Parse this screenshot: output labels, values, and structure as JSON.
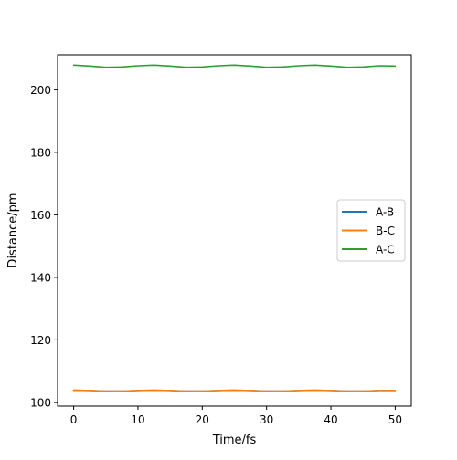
{
  "chart_data": {
    "type": "line",
    "xlabel": "Time/fs",
    "ylabel": "Distance/pm",
    "xlim": [
      -2.5,
      52.5
    ],
    "ylim": [
      98.8,
      211.2
    ],
    "xticks": [
      0,
      10,
      20,
      30,
      40,
      50
    ],
    "yticks": [
      100,
      120,
      140,
      160,
      180,
      200
    ],
    "grid": false,
    "legend": {
      "position": "center-right",
      "entries": [
        "A-B",
        "B-C",
        "A-C"
      ]
    },
    "series": [
      {
        "name": "A-B",
        "color": "#1f77b4",
        "x": [
          0,
          2.5,
          5,
          7.5,
          10,
          12.5,
          15,
          17.5,
          20,
          22.5,
          25,
          27.5,
          30,
          32.5,
          35,
          37.5,
          40,
          42.5,
          45,
          47.5,
          50
        ],
        "y": [
          103.9,
          103.8,
          103.6,
          103.6,
          103.8,
          103.9,
          103.8,
          103.6,
          103.6,
          103.8,
          103.9,
          103.8,
          103.6,
          103.6,
          103.8,
          103.9,
          103.8,
          103.6,
          103.6,
          103.8,
          103.8
        ]
      },
      {
        "name": "B-C",
        "color": "#ff7f0e",
        "x": [
          0,
          2.5,
          5,
          7.5,
          10,
          12.5,
          15,
          17.5,
          20,
          22.5,
          25,
          27.5,
          30,
          32.5,
          35,
          37.5,
          40,
          42.5,
          45,
          47.5,
          50
        ],
        "y": [
          103.9,
          103.8,
          103.6,
          103.6,
          103.8,
          103.9,
          103.8,
          103.6,
          103.6,
          103.8,
          103.9,
          103.8,
          103.6,
          103.6,
          103.8,
          103.9,
          103.8,
          103.6,
          103.6,
          103.8,
          103.8
        ]
      },
      {
        "name": "A-C",
        "color": "#2ca02c",
        "x": [
          0,
          2.5,
          5,
          7.5,
          10,
          12.5,
          15,
          17.5,
          20,
          22.5,
          25,
          27.5,
          30,
          32.5,
          35,
          37.5,
          40,
          42.5,
          45,
          47.5,
          50
        ],
        "y": [
          207.9,
          207.6,
          207.2,
          207.3,
          207.7,
          207.9,
          207.6,
          207.2,
          207.3,
          207.7,
          207.9,
          207.6,
          207.2,
          207.3,
          207.7,
          207.9,
          207.6,
          207.2,
          207.3,
          207.7,
          207.6
        ]
      }
    ]
  }
}
